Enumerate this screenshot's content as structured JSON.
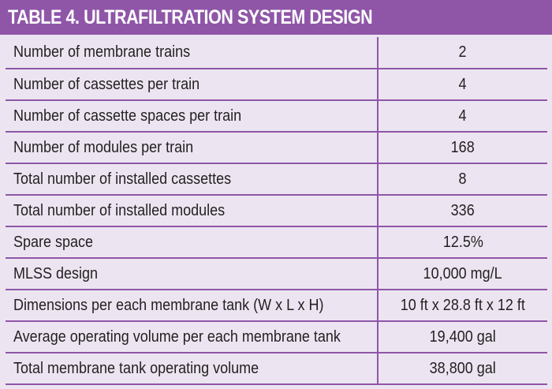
{
  "title": "TABLE 4. ULTRAFILTRATION SYSTEM DESIGN",
  "rows": [
    {
      "label": "Number of membrane trains",
      "value": "2"
    },
    {
      "label": "Number of cassettes per train",
      "value": "4"
    },
    {
      "label": "Number of cassette spaces per train",
      "value": "4"
    },
    {
      "label": "Number of modules per train",
      "value": "168"
    },
    {
      "label": "Total number of installed cassettes",
      "value": "8"
    },
    {
      "label": "Total number of installed modules",
      "value": "336"
    },
    {
      "label": "Spare space",
      "value": "12.5%"
    },
    {
      "label": "MLSS design",
      "value": "10,000 mg/L"
    },
    {
      "label": "Dimensions per each membrane tank (W x L x H)",
      "value": "10 ft x 28.8 ft x 12 ft"
    },
    {
      "label": "Average operating volume per each membrane tank",
      "value": "19,400 gal"
    },
    {
      "label": "Total membrane tank operating volume",
      "value": "38,800 gal"
    }
  ],
  "colors": {
    "header": "#8f56a8",
    "row_fill": "#ece5f1",
    "text": "#231f20"
  }
}
